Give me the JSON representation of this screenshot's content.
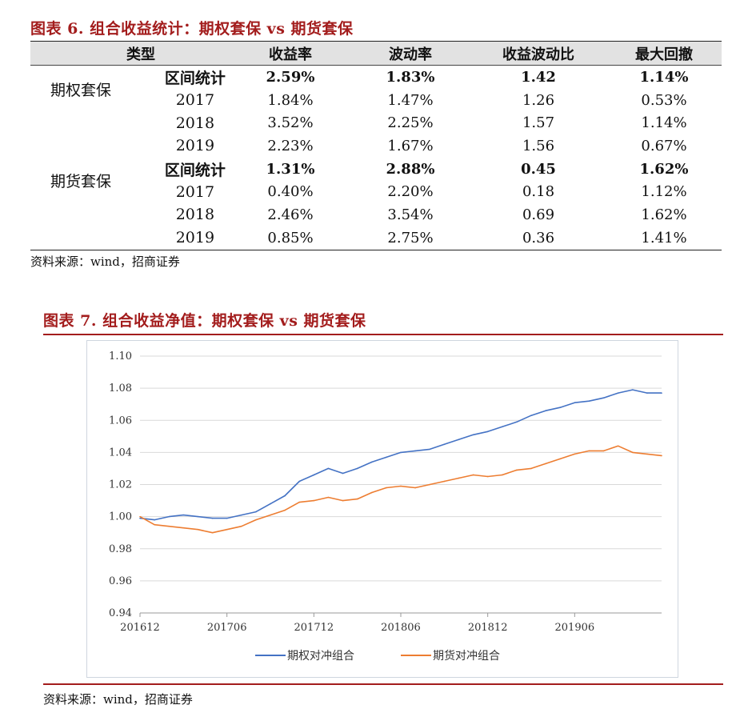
{
  "table6": {
    "caption": "图表 6. 组合收益统计：期权套保 vs 期货套保",
    "headers": [
      "类型",
      "收益率",
      "波动率",
      "收益波动比",
      "最大回撤"
    ],
    "groups": [
      {
        "name": "期权套保",
        "rows": [
          {
            "period": "区间统计",
            "ret": "2.59%",
            "vol": "1.83%",
            "ratio": "1.42",
            "mdd": "1.14%"
          },
          {
            "period": "2017",
            "ret": "1.84%",
            "vol": "1.47%",
            "ratio": "1.26",
            "mdd": "0.53%"
          },
          {
            "period": "2018",
            "ret": "3.52%",
            "vol": "2.25%",
            "ratio": "1.57",
            "mdd": "1.14%"
          },
          {
            "period": "2019",
            "ret": "2.23%",
            "vol": "1.67%",
            "ratio": "1.56",
            "mdd": "0.67%"
          }
        ]
      },
      {
        "name": "期货套保",
        "rows": [
          {
            "period": "区间统计",
            "ret": "1.31%",
            "vol": "2.88%",
            "ratio": "0.45",
            "mdd": "1.62%"
          },
          {
            "period": "2017",
            "ret": "0.40%",
            "vol": "2.20%",
            "ratio": "0.18",
            "mdd": "1.12%"
          },
          {
            "period": "2018",
            "ret": "2.46%",
            "vol": "3.54%",
            "ratio": "0.69",
            "mdd": "1.62%"
          },
          {
            "period": "2019",
            "ret": "0.85%",
            "vol": "2.75%",
            "ratio": "0.36",
            "mdd": "1.41%"
          }
        ]
      }
    ],
    "source": "资料来源：wind，招商证券"
  },
  "figure7": {
    "caption": "图表 7. 组合收益净值：期权套保 vs 期货套保",
    "source": "资料来源：wind，招商证券"
  },
  "colors": {
    "caption": "#a31d1d",
    "option": "#4472c4",
    "futures": "#ed7d31",
    "grid": "#d9d9d9"
  },
  "chart_data": {
    "type": "line",
    "title": "",
    "xlabel": "",
    "ylabel": "",
    "ylim": [
      0.94,
      1.1
    ],
    "yticks": [
      "0.94",
      "0.96",
      "0.98",
      "1.00",
      "1.02",
      "1.04",
      "1.06",
      "1.08",
      "1.10"
    ],
    "xticks": [
      "201612",
      "201706",
      "201712",
      "201806",
      "201812",
      "201906"
    ],
    "x_start": "201612",
    "x_end": "201912",
    "grid": true,
    "legend_position": "bottom",
    "series": [
      {
        "name": "期权对冲组合",
        "color": "#4472c4",
        "x": [
          "201612",
          "201701",
          "201702",
          "201703",
          "201704",
          "201705",
          "201706",
          "201707",
          "201708",
          "201709",
          "201710",
          "201711",
          "201712",
          "201801",
          "201802",
          "201803",
          "201804",
          "201805",
          "201806",
          "201807",
          "201808",
          "201809",
          "201810",
          "201811",
          "201812",
          "201901",
          "201902",
          "201903",
          "201904",
          "201905",
          "201906",
          "201907",
          "201908",
          "201909",
          "201910",
          "201911",
          "201912"
        ],
        "values": [
          0.999,
          0.998,
          1.0,
          1.001,
          1.0,
          0.999,
          0.999,
          1.001,
          1.003,
          1.008,
          1.013,
          1.022,
          1.026,
          1.03,
          1.027,
          1.03,
          1.034,
          1.037,
          1.04,
          1.041,
          1.042,
          1.045,
          1.048,
          1.051,
          1.053,
          1.056,
          1.059,
          1.063,
          1.066,
          1.068,
          1.071,
          1.072,
          1.074,
          1.077,
          1.079,
          1.077,
          1.077
        ]
      },
      {
        "name": "期货对冲组合",
        "color": "#ed7d31",
        "x": [
          "201612",
          "201701",
          "201702",
          "201703",
          "201704",
          "201705",
          "201706",
          "201707",
          "201708",
          "201709",
          "201710",
          "201711",
          "201712",
          "201801",
          "201802",
          "201803",
          "201804",
          "201805",
          "201806",
          "201807",
          "201808",
          "201809",
          "201810",
          "201811",
          "201812",
          "201901",
          "201902",
          "201903",
          "201904",
          "201905",
          "201906",
          "201907",
          "201908",
          "201909",
          "201910",
          "201911",
          "201912"
        ],
        "values": [
          1.0,
          0.995,
          0.994,
          0.993,
          0.992,
          0.99,
          0.992,
          0.994,
          0.998,
          1.001,
          1.004,
          1.009,
          1.01,
          1.012,
          1.01,
          1.011,
          1.015,
          1.018,
          1.019,
          1.018,
          1.02,
          1.022,
          1.024,
          1.026,
          1.025,
          1.026,
          1.029,
          1.03,
          1.033,
          1.036,
          1.039,
          1.041,
          1.041,
          1.044,
          1.04,
          1.039,
          1.038
        ]
      }
    ]
  }
}
